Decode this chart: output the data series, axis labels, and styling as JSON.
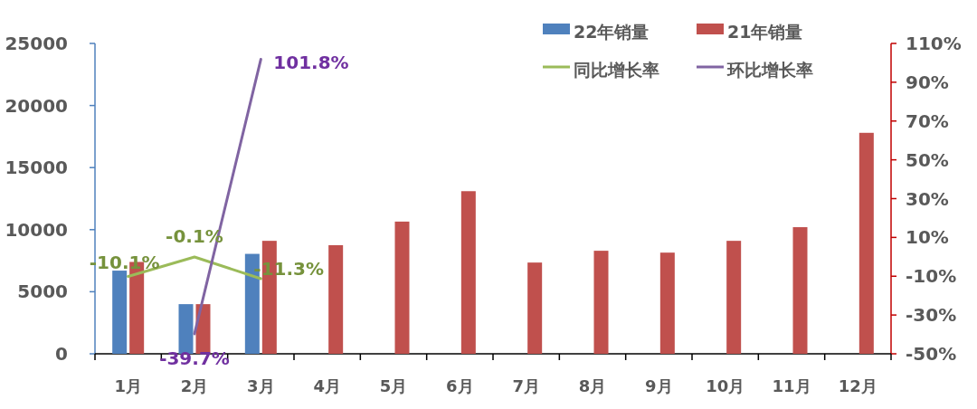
{
  "chart_data": {
    "type": "bar",
    "categories": [
      "1月",
      "2月",
      "3月",
      "4月",
      "5月",
      "6月",
      "7月",
      "8月",
      "9月",
      "10月",
      "11月",
      "12月"
    ],
    "series": [
      {
        "name": "22年销量",
        "color": "#4f81bd",
        "values": [
          6700,
          4000,
          8050,
          null,
          null,
          null,
          null,
          null,
          null,
          null,
          null,
          null
        ]
      },
      {
        "name": "21年销量",
        "color": "#c0504d",
        "values": [
          7400,
          4000,
          9100,
          8750,
          10650,
          13100,
          7350,
          8300,
          8150,
          9100,
          10200,
          17800
        ]
      },
      {
        "name": "同比增长率",
        "type": "line",
        "axis": "y2",
        "color": "#9bbb59",
        "values": [
          -10.1,
          -0.1,
          -11.3,
          null,
          null,
          null,
          null,
          null,
          null,
          null,
          null,
          null
        ],
        "value_labels": [
          "-10.1%",
          "-0.1%",
          "-11.3%",
          null,
          null,
          null,
          null,
          null,
          null,
          null,
          null,
          null
        ]
      },
      {
        "name": "环比增长率",
        "type": "line",
        "axis": "y2",
        "color": "#8064a2",
        "values": [
          null,
          -39.7,
          101.8,
          null,
          null,
          null,
          null,
          null,
          null,
          null,
          null,
          null
        ],
        "value_labels": [
          null,
          "-39.7%",
          "101.8%",
          null,
          null,
          null,
          null,
          null,
          null,
          null,
          null,
          null
        ]
      }
    ],
    "ylim": [
      0,
      25000
    ],
    "yticks": [
      0,
      5000,
      10000,
      15000,
      20000,
      25000
    ],
    "y2lim": [
      -50,
      110
    ],
    "y2ticks": [
      {
        "value": -50,
        "label": "-50%"
      },
      {
        "value": -30,
        "label": "-30%"
      },
      {
        "value": -10,
        "label": "-10%"
      },
      {
        "value": 10,
        "label": "10%"
      },
      {
        "value": 30,
        "label": "30%"
      },
      {
        "value": 50,
        "label": "50%"
      },
      {
        "value": 70,
        "label": "70%"
      },
      {
        "value": 90,
        "label": "90%"
      },
      {
        "value": 110,
        "label": "110%"
      }
    ],
    "legend": "top right",
    "grid": false
  }
}
